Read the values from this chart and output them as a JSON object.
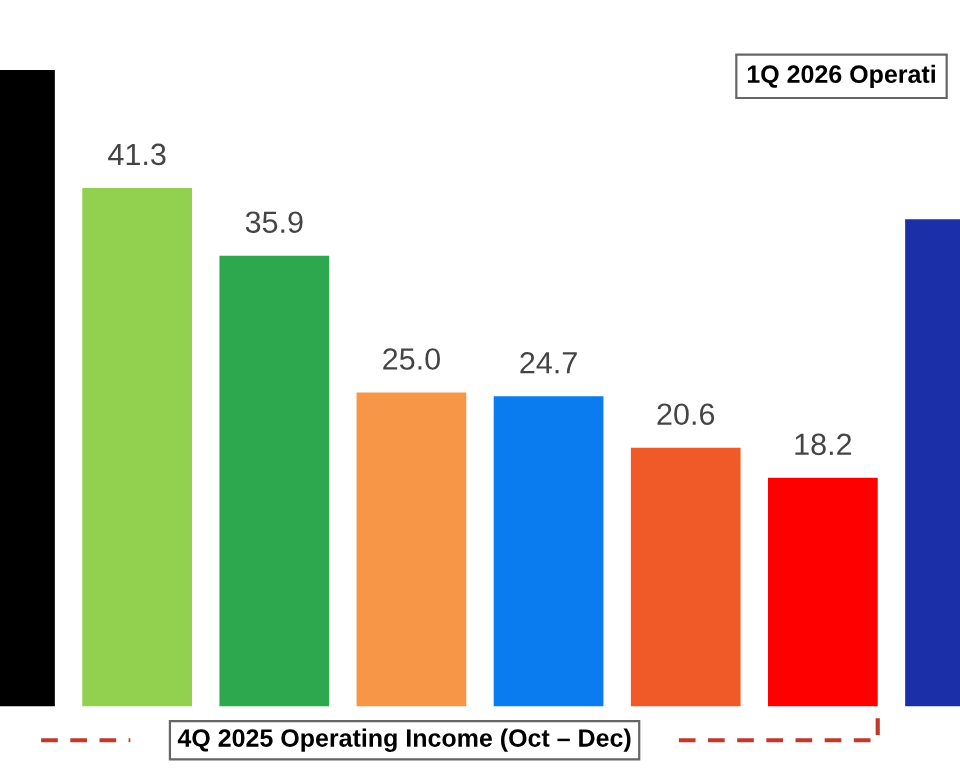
{
  "chart_data": {
    "type": "bar",
    "categories": [
      null,
      null,
      null,
      null,
      null,
      null,
      null,
      null
    ],
    "values": [
      50.7,
      41.3,
      35.9,
      25.0,
      24.7,
      20.6,
      18.2,
      38.8
    ],
    "colors": [
      "#000000",
      "#92d050",
      "#2ea84f",
      "#f79646",
      "#0a7cf0",
      "#f05a28",
      "#ff0000",
      "#1a2fa8"
    ],
    "value_labels": [
      null,
      "41.3",
      "35.9",
      "25.0",
      "24.7",
      "20.6",
      "18.2",
      null
    ],
    "annotations": [
      "4Q 2025 Operating Income (Oct – Dec)",
      "1Q 2026 Operati"
    ],
    "grid": false,
    "legend": false
  }
}
